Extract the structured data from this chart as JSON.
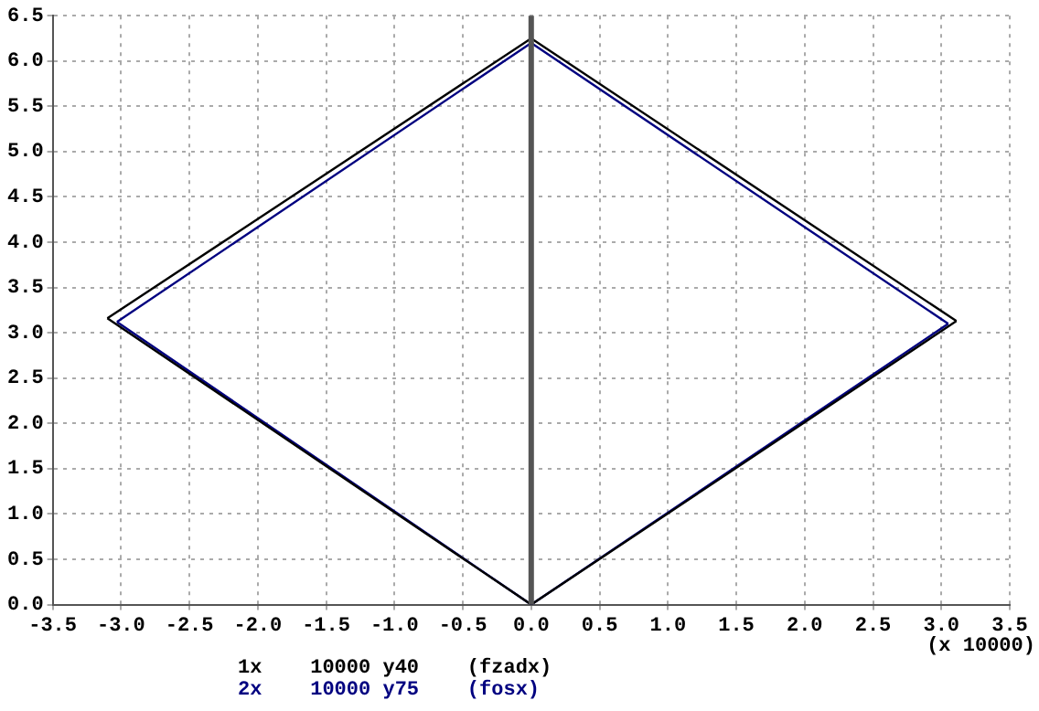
{
  "chart_data": {
    "type": "line",
    "xlabel": "(x 10000)",
    "xlim": [
      -3.5,
      3.5
    ],
    "ylim": [
      0,
      6.5
    ],
    "xticks": [
      {
        "value": -3.5,
        "label": "-3.5"
      },
      {
        "value": -3,
        "label": "-3.0"
      },
      {
        "value": -2.5,
        "label": "-2.5"
      },
      {
        "value": -2,
        "label": "-2.0"
      },
      {
        "value": -1.5,
        "label": "-1.5"
      },
      {
        "value": -1,
        "label": "-1.0"
      },
      {
        "value": -0.5,
        "label": "-0.5"
      },
      {
        "value": 0,
        "label": "0.0"
      },
      {
        "value": 0.5,
        "label": "0.5"
      },
      {
        "value": 1,
        "label": "1.0"
      },
      {
        "value": 1.5,
        "label": "1.5"
      },
      {
        "value": 2,
        "label": "2.0"
      },
      {
        "value": 2.5,
        "label": "2.5"
      },
      {
        "value": 3,
        "label": "3.0"
      },
      {
        "value": 3.5,
        "label": "3.5"
      }
    ],
    "yticks": [
      {
        "value": 0,
        "label": "0.0"
      },
      0.5,
      {
        "value": 1,
        "label": "1.0"
      },
      1.5,
      {
        "value": 2,
        "label": "2.0"
      },
      2.5,
      {
        "value": 3,
        "label": "3.0"
      },
      3.5,
      {
        "value": 4,
        "label": "4.0"
      },
      4.5,
      {
        "value": 5,
        "label": "5.0"
      },
      5.5,
      {
        "value": 6,
        "label": "6.0"
      },
      6.5
    ],
    "grid": true,
    "marker": "none",
    "line_style": "solid",
    "ref_lines": [
      {
        "axis": "x",
        "value": 0,
        "color": "#555555"
      }
    ],
    "series": [
      {
        "name": "1x    10000 y40    (fzadx)",
        "color": "#000000",
        "x": [
          -3.1,
          0,
          3.11
        ],
        "values": [
          3.16,
          6.25,
          3.13
        ]
      },
      {
        "color": "#000000",
        "x": [
          -3.1,
          0,
          3.11
        ],
        "values": [
          3.16,
          0,
          3.13
        ]
      },
      {
        "name": "2x    10000 y75    (fosx)",
        "color": "#000080",
        "x": [
          -3.03,
          0,
          3.05
        ],
        "values": [
          3.12,
          6.2,
          3.1
        ]
      },
      {
        "color": "#000080",
        "x": [
          -3.03,
          0,
          3.05
        ],
        "values": [
          3.12,
          0,
          3.1
        ]
      }
    ]
  }
}
